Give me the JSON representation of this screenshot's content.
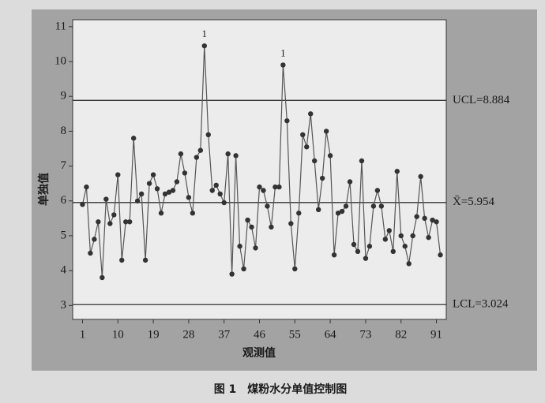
{
  "chart_data": {
    "type": "control",
    "title": "图 1　煤粉水分单值控制图",
    "x_label": "观测值",
    "y_label": "单独值",
    "x": [
      1,
      2,
      3,
      4,
      5,
      6,
      7,
      8,
      9,
      10,
      11,
      12,
      13,
      14,
      15,
      16,
      17,
      18,
      19,
      20,
      21,
      22,
      23,
      24,
      25,
      26,
      27,
      28,
      29,
      30,
      31,
      32,
      33,
      34,
      35,
      36,
      37,
      38,
      39,
      40,
      41,
      42,
      43,
      44,
      45,
      46,
      47,
      48,
      49,
      50,
      51,
      52,
      53,
      54,
      55,
      56,
      57,
      58,
      59,
      60,
      61,
      62,
      63,
      64,
      65,
      66,
      67,
      68,
      69,
      70,
      71,
      72,
      73,
      74,
      75,
      76,
      77,
      78,
      79,
      80,
      81,
      82,
      83,
      84,
      85,
      86,
      87,
      88,
      89,
      90,
      91,
      92
    ],
    "values": [
      5.9,
      6.4,
      4.5,
      4.9,
      5.4,
      3.8,
      6.05,
      5.35,
      5.6,
      6.75,
      4.3,
      5.4,
      5.4,
      7.8,
      6.0,
      6.2,
      4.3,
      6.5,
      6.75,
      6.35,
      5.65,
      6.2,
      6.25,
      6.3,
      6.55,
      7.35,
      6.8,
      6.1,
      5.65,
      7.25,
      7.45,
      10.45,
      7.9,
      6.3,
      6.45,
      6.2,
      5.95,
      7.35,
      3.9,
      7.3,
      4.7,
      4.05,
      5.45,
      5.25,
      4.65,
      6.4,
      6.3,
      5.85,
      5.25,
      6.4,
      6.4,
      9.9,
      8.3,
      5.35,
      4.05,
      5.65,
      7.9,
      7.55,
      8.5,
      7.15,
      5.75,
      6.65,
      8.0,
      7.3,
      4.45,
      5.65,
      5.7,
      5.85,
      6.55,
      4.75,
      4.55,
      7.15,
      4.35,
      4.7,
      5.85,
      6.3,
      5.85,
      4.9,
      5.15,
      4.55,
      6.85,
      5.0,
      4.7,
      4.2,
      5.0,
      5.55,
      6.7,
      5.5,
      4.95,
      5.45,
      5.4,
      4.45
    ],
    "color": "#333333",
    "xlim": [
      -1.5,
      93.5
    ],
    "ylim": [
      2.6,
      11.2
    ],
    "xticks": [
      1,
      10,
      19,
      28,
      37,
      46,
      55,
      64,
      73,
      82,
      91
    ],
    "yticks": [
      3,
      4,
      5,
      6,
      7,
      8,
      9,
      10,
      11
    ],
    "control_lines": [
      {
        "value": 8.884,
        "label": "UCL=8.884"
      },
      {
        "value": 5.954,
        "label": "X̄=5.954"
      },
      {
        "value": 3.024,
        "label": "LCL=3.024"
      }
    ],
    "annotations": [
      {
        "x": 32,
        "text": "1"
      },
      {
        "x": 52,
        "text": "1"
      }
    ]
  }
}
